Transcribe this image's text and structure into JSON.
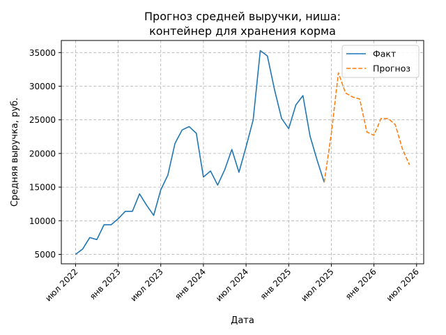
{
  "chart_data": {
    "type": "line",
    "title": [
      "Прогноз средней выручки, ниша:",
      "контейнер для хранения корма"
    ],
    "xlabel": "Дата",
    "ylabel": "Средняя выручка, руб.",
    "ylim": [
      3600,
      36800
    ],
    "xlim": [
      "2022-05",
      "2026-08"
    ],
    "y_ticks": [
      5000,
      10000,
      15000,
      20000,
      25000,
      30000,
      35000
    ],
    "x_ticks": [
      {
        "month": "2022-07",
        "label": "июл 2022"
      },
      {
        "month": "2023-01",
        "label": "янв 2023"
      },
      {
        "month": "2023-07",
        "label": "июл 2023"
      },
      {
        "month": "2024-01",
        "label": "янв 2024"
      },
      {
        "month": "2024-07",
        "label": "июл 2024"
      },
      {
        "month": "2025-01",
        "label": "янв 2025"
      },
      {
        "month": "2025-07",
        "label": "июл 2025"
      },
      {
        "month": "2026-01",
        "label": "янв 2026"
      },
      {
        "month": "2026-07",
        "label": "июл 2026"
      }
    ],
    "grid": true,
    "legend_position": "top-right",
    "series": [
      {
        "name": "Факт",
        "color": "#1f77b4",
        "style": "solid",
        "points": [
          [
            "2022-07",
            5000
          ],
          [
            "2022-08",
            5800
          ],
          [
            "2022-09",
            7500
          ],
          [
            "2022-10",
            7200
          ],
          [
            "2022-11",
            9400
          ],
          [
            "2022-12",
            9400
          ],
          [
            "2023-01",
            10300
          ],
          [
            "2023-02",
            11400
          ],
          [
            "2023-03",
            11400
          ],
          [
            "2023-04",
            14000
          ],
          [
            "2023-05",
            12300
          ],
          [
            "2023-06",
            10800
          ],
          [
            "2023-07",
            14600
          ],
          [
            "2023-08",
            16800
          ],
          [
            "2023-09",
            21500
          ],
          [
            "2023-10",
            23500
          ],
          [
            "2023-11",
            24000
          ],
          [
            "2023-12",
            23000
          ],
          [
            "2024-01",
            16500
          ],
          [
            "2024-02",
            17400
          ],
          [
            "2024-03",
            15300
          ],
          [
            "2024-04",
            17600
          ],
          [
            "2024-05",
            20600
          ],
          [
            "2024-06",
            17200
          ],
          [
            "2024-07",
            21000
          ],
          [
            "2024-08",
            25000
          ],
          [
            "2024-09",
            35300
          ],
          [
            "2024-10",
            34500
          ],
          [
            "2024-11",
            29500
          ],
          [
            "2024-12",
            25200
          ],
          [
            "2025-01",
            23700
          ],
          [
            "2025-02",
            27200
          ],
          [
            "2025-03",
            28600
          ],
          [
            "2025-04",
            22600
          ],
          [
            "2025-05",
            19000
          ],
          [
            "2025-06",
            15700
          ]
        ]
      },
      {
        "name": "Прогноз",
        "color": "#ff7f0e",
        "style": "dashed",
        "points": [
          [
            "2025-06",
            15700
          ],
          [
            "2025-07",
            23000
          ],
          [
            "2025-08",
            32000
          ],
          [
            "2025-09",
            29000
          ],
          [
            "2025-10",
            28400
          ],
          [
            "2025-11",
            28100
          ],
          [
            "2025-12",
            23200
          ],
          [
            "2026-01",
            22700
          ],
          [
            "2026-02",
            25200
          ],
          [
            "2026-03",
            25200
          ],
          [
            "2026-04",
            24300
          ],
          [
            "2026-05",
            20700
          ],
          [
            "2026-06",
            18300
          ]
        ]
      }
    ]
  }
}
